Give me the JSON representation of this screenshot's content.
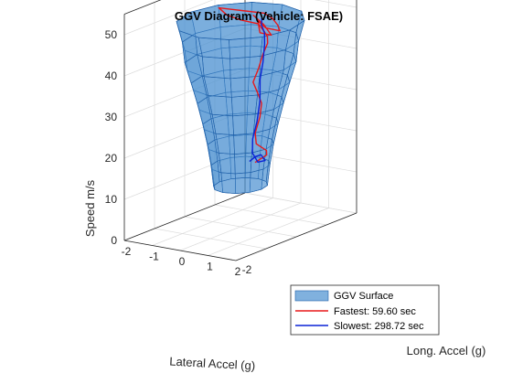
{
  "chart_data": {
    "type": "surface3d",
    "title": "GGV Diagram (Vehicle: FSAE)",
    "xlabel": "Lateral Accel (g)",
    "ylabel": "Long. Accel (g)",
    "zlabel": "Speed m/s",
    "xlim": [
      -2,
      2
    ],
    "ylim": [
      -2,
      2
    ],
    "zlim": [
      0,
      55
    ],
    "xticks": [
      "-2",
      "-1",
      "0",
      "1",
      "2"
    ],
    "yticks": [
      "-2"
    ],
    "zticks": [
      "0",
      "10",
      "20",
      "30",
      "40",
      "50"
    ],
    "grid": true,
    "legend_position": "bottom-right",
    "surface": {
      "name": "GGV Surface",
      "color": "#4a90d0",
      "speeds": [
        10,
        15,
        20,
        25,
        30,
        35,
        40,
        45,
        50
      ],
      "radius_g": [
        0.75,
        0.82,
        0.92,
        1.05,
        1.2,
        1.37,
        1.55,
        1.62,
        1.78
      ]
    },
    "series": [
      {
        "name": "Fastest: 59.60 sec",
        "color": "#e8191a",
        "points": [
          [
            0.2,
            0.3,
            15
          ],
          [
            0.4,
            0.5,
            16.5
          ],
          [
            0.5,
            0.4,
            18
          ],
          [
            0.35,
            0.2,
            20
          ],
          [
            0.15,
            0.35,
            22
          ],
          [
            0.05,
            0.6,
            25
          ],
          [
            0.0,
            0.7,
            28
          ],
          [
            -0.05,
            0.6,
            31
          ],
          [
            0.02,
            0.4,
            34
          ],
          [
            0.1,
            0.5,
            37
          ],
          [
            0.05,
            0.7,
            40
          ],
          [
            0.0,
            0.9,
            42
          ],
          [
            0.1,
            0.8,
            44
          ],
          [
            0.2,
            0.6,
            46
          ],
          [
            0.1,
            0.5,
            48
          ],
          [
            -0.3,
            0.3,
            49
          ],
          [
            -0.7,
            0.2,
            50
          ],
          [
            -1.1,
            0.3,
            51
          ],
          [
            -0.5,
            0.5,
            50.5
          ],
          [
            0.1,
            0.7,
            50
          ],
          [
            0.5,
            0.6,
            49.5
          ],
          [
            0.9,
            0.4,
            49
          ],
          [
            1.2,
            0.2,
            48.5
          ],
          [
            0.8,
            0.1,
            49
          ],
          [
            0.3,
            0.3,
            49.5
          ],
          [
            0.7,
            0.0,
            48
          ],
          [
            1.0,
            0.1,
            47.5
          ],
          [
            0.4,
            0.4,
            48.5
          ],
          [
            -0.2,
            0.6,
            49.5
          ]
        ]
      },
      {
        "name": "Slowest: 298.72 sec",
        "color": "#0a22d6",
        "points": [
          [
            0.0,
            0.3,
            15
          ],
          [
            0.1,
            0.4,
            16
          ],
          [
            0.25,
            0.45,
            16.5
          ],
          [
            0.45,
            0.4,
            15.5
          ],
          [
            0.3,
            0.3,
            15.2
          ],
          [
            0.05,
            0.35,
            17
          ],
          [
            -0.05,
            0.45,
            20
          ],
          [
            0.0,
            0.55,
            24
          ],
          [
            0.05,
            0.6,
            29
          ],
          [
            0.0,
            0.65,
            34
          ],
          [
            0.05,
            0.7,
            38
          ],
          [
            0.0,
            0.8,
            42
          ],
          [
            0.05,
            0.75,
            45
          ],
          [
            0.0,
            0.7,
            47
          ],
          [
            -0.05,
            0.75,
            48.5
          ]
        ]
      }
    ]
  }
}
